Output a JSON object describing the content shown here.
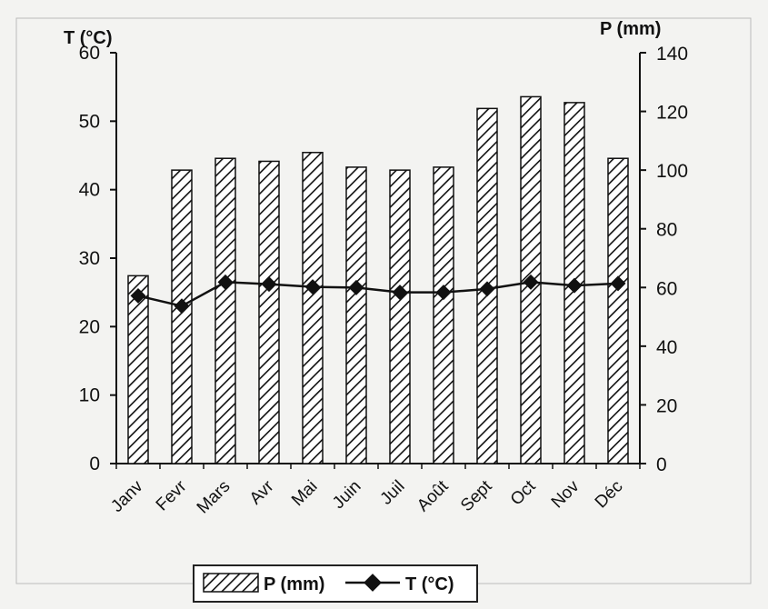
{
  "chart_data": {
    "type": "bar+line",
    "categories": [
      "Janv",
      "Fevr",
      "Mars",
      "Avr",
      "Mai",
      "Juin",
      "Juil",
      "Août",
      "Sept",
      "Oct",
      "Nov",
      "Déc"
    ],
    "series": [
      {
        "name": "P (mm)",
        "type": "bar",
        "axis": "right",
        "values": [
          64,
          100,
          104,
          103,
          106,
          101,
          100,
          101,
          121,
          125,
          123,
          104
        ]
      },
      {
        "name": "T (°C)",
        "type": "line",
        "axis": "left",
        "values": [
          24.5,
          23,
          26.5,
          26.2,
          25.8,
          25.7,
          25,
          25,
          25.5,
          26.5,
          26,
          26.3
        ]
      }
    ],
    "left_axis": {
      "label": "T (°C)",
      "ylim": [
        0,
        60
      ],
      "ticks": [
        0,
        10,
        20,
        30,
        40,
        50,
        60
      ]
    },
    "right_axis": {
      "label": "P (mm)",
      "ylim": [
        0,
        140
      ],
      "ticks": [
        0,
        20,
        40,
        60,
        80,
        100,
        120,
        140
      ]
    },
    "legend": {
      "placement": "bottom",
      "items": [
        "P (mm)",
        "T (°C)"
      ]
    },
    "grid": false
  }
}
